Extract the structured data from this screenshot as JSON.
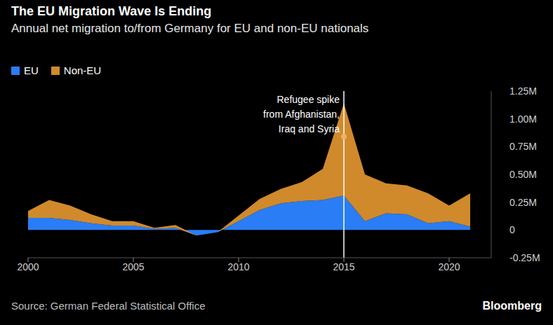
{
  "chart_data": {
    "type": "area",
    "title": "The EU Migration Wave Is Ending",
    "subtitle": "Annual net migration to/from Germany for EU and non-EU nationals",
    "stacked": true,
    "grid": false,
    "legend": "top-left",
    "x": [
      2000,
      2001,
      2002,
      2003,
      2004,
      2005,
      2006,
      2007,
      2008,
      2009,
      2010,
      2011,
      2012,
      2013,
      2014,
      2015,
      2016,
      2017,
      2018,
      2019,
      2020,
      2021
    ],
    "series": [
      {
        "name": "EU",
        "color": "#2a7df5",
        "values": [
          0.11,
          0.11,
          0.09,
          0.06,
          0.04,
          0.04,
          0.01,
          0.02,
          -0.05,
          -0.02,
          0.08,
          0.18,
          0.24,
          0.26,
          0.27,
          0.31,
          0.08,
          0.15,
          0.14,
          0.06,
          0.08,
          0.03
        ]
      },
      {
        "name": "Non-EU",
        "color": "#d08a2c",
        "values": [
          0.06,
          0.16,
          0.13,
          0.08,
          0.04,
          0.04,
          0.01,
          0.025,
          0.0,
          0.0,
          0.05,
          0.1,
          0.13,
          0.17,
          0.28,
          0.83,
          0.42,
          0.27,
          0.26,
          0.27,
          0.14,
          0.3
        ]
      }
    ],
    "xlim": [
      2000,
      2022
    ],
    "xticks": [
      2000,
      2005,
      2010,
      2015,
      2020
    ],
    "ylim": [
      -0.25,
      1.25
    ],
    "yticks": [
      {
        "value": -0.25,
        "label": "-0.25M"
      },
      0,
      {
        "value": 0.25,
        "label": "0.25M"
      },
      {
        "value": 0.5,
        "label": "0.50M"
      },
      {
        "value": 0.75,
        "label": "0.75M"
      },
      {
        "value": 1.0,
        "label": "1.00M"
      },
      {
        "value": 1.25,
        "label": "1.25M"
      }
    ],
    "annotation": {
      "x": 2015,
      "y": 0.84,
      "text": "Refugee spike\nfrom Afghanistan,\nIraq and Syria"
    },
    "source": "Source: German Federal Statistical Office",
    "credit": "Bloomberg"
  }
}
